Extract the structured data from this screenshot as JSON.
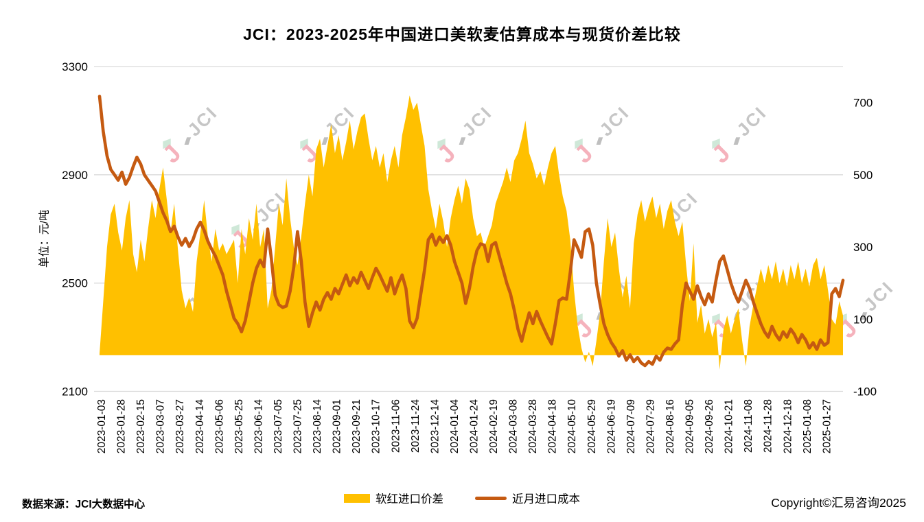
{
  "title": "JCI：2023-2025年中国进口美软麦估算成本与现货价差比较",
  "watermark": {
    "mark": "J",
    "text": "JCI"
  },
  "footer": {
    "source": "数据来源：JCI大数据中心",
    "copyright": "Copyright©汇易咨询2025"
  },
  "colors": {
    "area": "#FFC000",
    "line": "#C55A11",
    "gridline": "#d9d9d9",
    "watermark_gray": "#c6c6c6",
    "watermark_pink": "#f5b2bc",
    "watermark_green": "#cfe8d8"
  },
  "chart_data": {
    "type": "area",
    "title": "JCI：2023-2025年中国进口美软麦估算成本与现货价差比较",
    "grid": "horizontal-only",
    "legend_position": "bottom",
    "left_axis": {
      "label": "单位：元/吨",
      "ticks": [
        3300,
        2900,
        2500,
        2100
      ],
      "range": [
        2100,
        3300
      ]
    },
    "right_axis": {
      "ticks": [
        700,
        500,
        300,
        100,
        -100
      ],
      "range": [
        -100,
        800
      ]
    },
    "x_tick_labels": [
      "2023-01-03",
      "2023-01-28",
      "2023-02-15",
      "2023-03-07",
      "2023-03-27",
      "2023-04-14",
      "2023-05-06",
      "2023-05-25",
      "2023-06-14",
      "2023-07-05",
      "2023-07-25",
      "2023-08-14",
      "2023-09-01",
      "2023-09-21",
      "2023-10-17",
      "2023-11-06",
      "2023-11-24",
      "2023-12-14",
      "2024-01-04",
      "2024-01-24",
      "2024-02-19",
      "2024-03-08",
      "2024-03-28",
      "2024-04-18",
      "2024-05-10",
      "2024-05-29",
      "2024-06-19",
      "2024-07-09",
      "2024-07-29",
      "2024-08-16",
      "2024-09-05",
      "2024-09-26",
      "2024-10-21",
      "2024-11-08",
      "2024-11-28",
      "2024-12-18",
      "2025-01-08",
      "2025-01-27"
    ],
    "series": [
      {
        "name": "软红进口价差",
        "type": "area",
        "axis": "right",
        "color": "#FFC000",
        "baseline": 0,
        "values": [
          5,
          150,
          300,
          390,
          420,
          340,
          290,
          380,
          430,
          280,
          230,
          320,
          260,
          350,
          430,
          380,
          460,
          520,
          430,
          340,
          420,
          290,
          180,
          130,
          160,
          120,
          260,
          340,
          430,
          330,
          260,
          350,
          290,
          310,
          280,
          300,
          320,
          200,
          350,
          280,
          380,
          320,
          420,
          300,
          350,
          130,
          180,
          300,
          420,
          360,
          490,
          380,
          300,
          250,
          330,
          420,
          500,
          440,
          570,
          600,
          520,
          580,
          640,
          560,
          610,
          540,
          590,
          650,
          570,
          620,
          660,
          670,
          600,
          540,
          580,
          520,
          560,
          480,
          540,
          580,
          520,
          610,
          660,
          720,
          680,
          700,
          640,
          580,
          460,
          400,
          350,
          420,
          370,
          300,
          380,
          430,
          470,
          420,
          490,
          460,
          380,
          330,
          340,
          300,
          330,
          360,
          420,
          450,
          480,
          520,
          480,
          540,
          560,
          600,
          650,
          560,
          530,
          490,
          510,
          470,
          520,
          560,
          580,
          500,
          440,
          400,
          320,
          180,
          80,
          20,
          -20,
          10,
          -30,
          40,
          120,
          260,
          380,
          300,
          340,
          240,
          160,
          220,
          130,
          310,
          390,
          430,
          370,
          410,
          440,
          380,
          420,
          350,
          400,
          430,
          370,
          330,
          370,
          250,
          150,
          310,
          90,
          140,
          60,
          100,
          50,
          90,
          -40,
          70,
          110,
          60,
          100,
          130,
          40,
          -30,
          80,
          140,
          190,
          240,
          200,
          250,
          210,
          260,
          200,
          240,
          190,
          250,
          210,
          260,
          200,
          240,
          190,
          250,
          270,
          210,
          250,
          180,
          100,
          85,
          150,
          110
        ]
      },
      {
        "name": "近月进口成本",
        "type": "line",
        "axis": "left",
        "color": "#C55A11",
        "values": [
          3190,
          3060,
          2970,
          2920,
          2900,
          2880,
          2910,
          2865,
          2890,
          2930,
          2965,
          2940,
          2900,
          2880,
          2860,
          2840,
          2800,
          2760,
          2730,
          2690,
          2710,
          2670,
          2640,
          2665,
          2635,
          2660,
          2700,
          2725,
          2695,
          2655,
          2625,
          2600,
          2565,
          2530,
          2470,
          2420,
          2370,
          2350,
          2320,
          2360,
          2430,
          2500,
          2555,
          2585,
          2560,
          2700,
          2590,
          2455,
          2420,
          2410,
          2415,
          2470,
          2560,
          2690,
          2580,
          2430,
          2340,
          2390,
          2430,
          2400,
          2440,
          2465,
          2440,
          2480,
          2460,
          2495,
          2530,
          2490,
          2520,
          2500,
          2540,
          2510,
          2480,
          2520,
          2555,
          2530,
          2500,
          2470,
          2520,
          2460,
          2500,
          2530,
          2480,
          2360,
          2335,
          2370,
          2460,
          2550,
          2660,
          2680,
          2640,
          2670,
          2650,
          2675,
          2640,
          2580,
          2540,
          2500,
          2425,
          2480,
          2560,
          2620,
          2645,
          2640,
          2580,
          2640,
          2650,
          2600,
          2550,
          2500,
          2460,
          2400,
          2330,
          2285,
          2340,
          2390,
          2350,
          2395,
          2360,
          2330,
          2300,
          2275,
          2350,
          2435,
          2445,
          2440,
          2540,
          2660,
          2630,
          2595,
          2690,
          2700,
          2640,
          2500,
          2420,
          2350,
          2310,
          2280,
          2260,
          2230,
          2250,
          2215,
          2235,
          2210,
          2225,
          2205,
          2195,
          2210,
          2200,
          2230,
          2215,
          2245,
          2260,
          2255,
          2275,
          2290,
          2420,
          2500,
          2470,
          2440,
          2490,
          2450,
          2420,
          2460,
          2430,
          2510,
          2580,
          2600,
          2550,
          2500,
          2460,
          2430,
          2470,
          2510,
          2480,
          2430,
          2390,
          2350,
          2320,
          2300,
          2340,
          2310,
          2290,
          2320,
          2300,
          2330,
          2310,
          2280,
          2310,
          2290,
          2260,
          2280,
          2255,
          2290,
          2270,
          2280,
          2460,
          2480,
          2450,
          2510
        ]
      }
    ]
  }
}
